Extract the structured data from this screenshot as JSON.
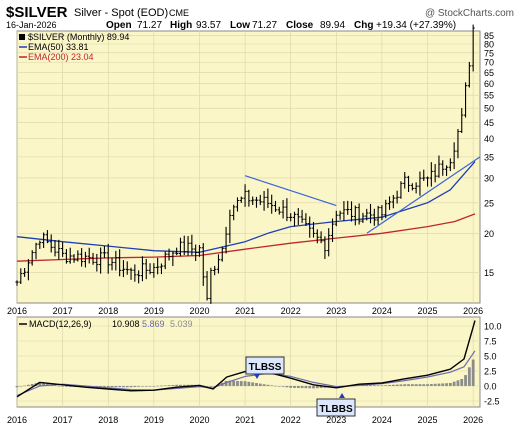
{
  "header": {
    "symbol": "$SILVER",
    "subtitle": "Silver - Spot (EOD)",
    "exchange": "CME",
    "watermark": "@ StockCharts.com",
    "date": "16-Jan-2026",
    "open_label": "Open",
    "open": "71.27",
    "high_label": "High",
    "high": "93.57",
    "low_label": "Low",
    "low": "71.27",
    "close_label": "Close",
    "close": "89.94",
    "chg_label": "Chg",
    "chg": "+19.34 (+27.39%)"
  },
  "legend": {
    "price": "$SILVER (Monthly) 89.94",
    "ema50": "EMA(50) 33.81",
    "ema200": "EMA(200) 23.04"
  },
  "macd_legend": {
    "label": "MACD(12,26,9)",
    "macd": "10.908",
    "signal": "5.869",
    "hist": "5.039"
  },
  "annotations": {
    "tlbss": "TLBSS",
    "tlbbs": "TLBBS"
  },
  "colors": {
    "panel_bg": "#fbf6c8",
    "price": "#000000",
    "ema50": "#1f3fb5",
    "ema200": "#c0262d",
    "trendline": "#3a66d6",
    "macd": "#000000",
    "signal": "#6b6ba8",
    "histogram": "#8c8c8c"
  },
  "chart_data": [
    {
      "type": "line",
      "title": "$SILVER Silver - Spot (EOD) CME",
      "scale": "log",
      "x_ticks": [
        "2016",
        "2017",
        "2018",
        "2019",
        "2020",
        "2021",
        "2022",
        "2023",
        "2024",
        "2025",
        "2026"
      ],
      "y_ticks": [
        15,
        20,
        25,
        30,
        35,
        40,
        45,
        50,
        55,
        60,
        65,
        70,
        75,
        80,
        85
      ],
      "ylim": [
        12,
        88
      ],
      "grid": true,
      "series": [
        {
          "name": "$SILVER (Monthly)",
          "style": "ohlc-bars",
          "x": [
            2016.0,
            2016.5,
            2017.0,
            2017.5,
            2018.0,
            2018.5,
            2019.0,
            2019.5,
            2020.0,
            2020.17,
            2020.25,
            2020.5,
            2020.67,
            2021.0,
            2021.5,
            2022.0,
            2022.5,
            2022.75,
            2023.0,
            2023.5,
            2024.0,
            2024.33,
            2024.5,
            2025.0,
            2025.5,
            2025.75,
            2025.92,
            2026.04
          ],
          "values": [
            14.0,
            19.5,
            17.0,
            16.8,
            16.5,
            15.0,
            15.5,
            18.0,
            17.8,
            12.0,
            15.0,
            18.0,
            24.0,
            26.0,
            25.0,
            23.0,
            19.5,
            18.5,
            23.5,
            23.0,
            23.0,
            27.0,
            29.0,
            29.5,
            35.0,
            46.0,
            71.27,
            89.94
          ]
        },
        {
          "name": "EMA(50)",
          "x": [
            2016.0,
            2017.0,
            2018.0,
            2019.0,
            2020.0,
            2021.0,
            2021.5,
            2022.0,
            2023.0,
            2024.0,
            2025.0,
            2025.5,
            2026.04
          ],
          "values": [
            19.5,
            18.8,
            18.2,
            17.6,
            17.4,
            18.8,
            20.0,
            21.0,
            21.8,
            22.5,
            25.0,
            27.5,
            33.81
          ]
        },
        {
          "name": "EMA(200)",
          "x": [
            2016.0,
            2017.0,
            2018.0,
            2019.0,
            2020.0,
            2021.0,
            2022.0,
            2023.0,
            2024.0,
            2025.0,
            2025.6,
            2026.04
          ],
          "values": [
            16.3,
            16.5,
            16.7,
            16.8,
            17.0,
            17.8,
            18.6,
            19.3,
            20.0,
            21.0,
            21.8,
            23.04
          ]
        }
      ],
      "trendlines": [
        {
          "x": [
            2021.0,
            2023.0
          ],
          "values": [
            30.5,
            24.5
          ]
        },
        {
          "x": [
            2023.67,
            2026.15
          ],
          "values": [
            20.0,
            35.0
          ]
        }
      ]
    },
    {
      "type": "line",
      "title": "MACD(12,26,9)",
      "x_ticks": [
        "2016",
        "2017",
        "2018",
        "2019",
        "2020",
        "2021",
        "2022",
        "2023",
        "2024",
        "2025",
        "2026"
      ],
      "y_ticks": [
        -2.5,
        0.0,
        2.5,
        5.0,
        7.5,
        10.0
      ],
      "ylim": [
        -3.5,
        11.5
      ],
      "grid": true,
      "series": [
        {
          "name": "MACD",
          "x": [
            2016.0,
            2016.5,
            2017.0,
            2017.5,
            2018.0,
            2018.5,
            2019.0,
            2019.5,
            2020.0,
            2020.3,
            2020.6,
            2021.0,
            2021.5,
            2022.0,
            2022.5,
            2023.0,
            2023.5,
            2024.0,
            2024.5,
            2025.0,
            2025.5,
            2025.8,
            2026.04
          ],
          "values": [
            -1.8,
            0.6,
            0.2,
            -0.2,
            -0.5,
            -0.8,
            -0.7,
            -0.2,
            0.1,
            -0.5,
            1.5,
            2.4,
            2.3,
            1.3,
            0.2,
            -0.3,
            0.3,
            0.5,
            1.2,
            1.8,
            2.8,
            4.5,
            10.908
          ]
        },
        {
          "name": "Signal",
          "x": [
            2016.0,
            2016.5,
            2017.0,
            2017.5,
            2018.0,
            2018.5,
            2019.0,
            2019.5,
            2020.0,
            2020.3,
            2020.6,
            2021.0,
            2021.5,
            2022.0,
            2022.5,
            2023.0,
            2023.5,
            2024.0,
            2024.5,
            2025.0,
            2025.5,
            2025.8,
            2026.04
          ],
          "values": [
            -1.6,
            0.0,
            0.3,
            0.0,
            -0.3,
            -0.6,
            -0.7,
            -0.4,
            -0.1,
            -0.3,
            0.6,
            1.6,
            2.1,
            1.6,
            0.6,
            -0.1,
            0.1,
            0.4,
            0.9,
            1.5,
            2.3,
            3.2,
            5.869
          ]
        },
        {
          "name": "Histogram",
          "style": "bars",
          "x": [
            2016.0,
            2016.5,
            2017.0,
            2017.5,
            2018.0,
            2018.5,
            2019.0,
            2019.5,
            2020.0,
            2020.3,
            2020.6,
            2021.0,
            2021.5,
            2022.0,
            2022.5,
            2023.0,
            2023.5,
            2024.0,
            2024.5,
            2025.0,
            2025.5,
            2025.8,
            2026.04
          ],
          "values": [
            -0.2,
            0.6,
            -0.1,
            -0.2,
            -0.2,
            -0.2,
            0.0,
            0.2,
            0.2,
            -0.2,
            0.9,
            0.8,
            0.2,
            -0.3,
            -0.4,
            -0.2,
            0.2,
            0.1,
            0.3,
            0.3,
            0.5,
            1.3,
            5.039
          ]
        }
      ]
    }
  ]
}
